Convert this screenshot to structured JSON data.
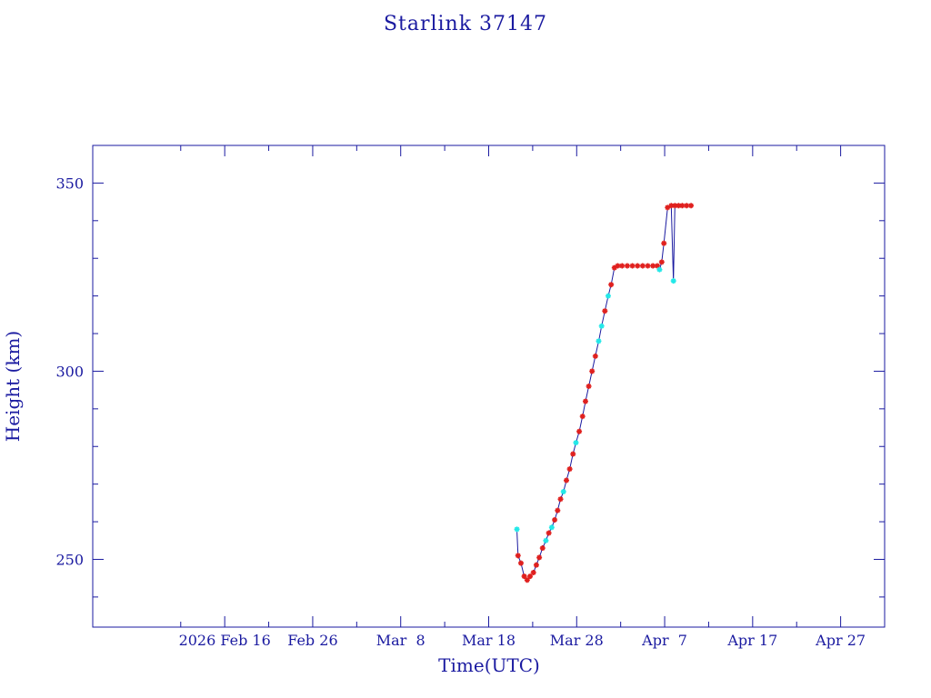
{
  "chart_data": {
    "type": "line",
    "title": "Starlink 37147",
    "xlabel": "Time(UTC)",
    "ylabel": "Height (km)",
    "x_range": [
      "2026-02-01",
      "2026-05-02"
    ],
    "ylim": [
      232,
      360
    ],
    "y_ticks": [
      250,
      300,
      350
    ],
    "x_ticks": [
      {
        "date": "2026-02-16",
        "label": "2026 Feb 16"
      },
      {
        "date": "2026-02-26",
        "label": "Feb 26"
      },
      {
        "date": "2026-03-08",
        "label": "Mar  8"
      },
      {
        "date": "2026-03-18",
        "label": "Mar 18"
      },
      {
        "date": "2026-03-28",
        "label": "Mar 28"
      },
      {
        "date": "2026-04-07",
        "label": "Apr  7"
      },
      {
        "date": "2026-04-17",
        "label": "Apr 17"
      },
      {
        "date": "2026-04-27",
        "label": "Apr 27"
      }
    ],
    "grid": false,
    "line_color": "#1a1aa0",
    "marker_colors": {
      "red": "#e0201e",
      "cyan": "#22e8e8"
    },
    "points": [
      {
        "x": "2026-03-21T05:00",
        "y": 258,
        "c": "cyan"
      },
      {
        "x": "2026-03-21T08:00",
        "y": 251,
        "c": "red"
      },
      {
        "x": "2026-03-21T16:00",
        "y": 249,
        "c": "red"
      },
      {
        "x": "2026-03-22T01:00",
        "y": 245.5,
        "c": "red"
      },
      {
        "x": "2026-03-22T09:00",
        "y": 244.5,
        "c": "red"
      },
      {
        "x": "2026-03-22T17:00",
        "y": 245.5,
        "c": "red"
      },
      {
        "x": "2026-03-23T02:00",
        "y": 246.5,
        "c": "red"
      },
      {
        "x": "2026-03-23T10:00",
        "y": 248.5,
        "c": "red"
      },
      {
        "x": "2026-03-23T18:00",
        "y": 250.5,
        "c": "red"
      },
      {
        "x": "2026-03-24T03:00",
        "y": 253,
        "c": "red"
      },
      {
        "x": "2026-03-24T12:00",
        "y": 255,
        "c": "cyan"
      },
      {
        "x": "2026-03-24T20:00",
        "y": 257,
        "c": "red"
      },
      {
        "x": "2026-03-25T04:00",
        "y": 258.5,
        "c": "cyan"
      },
      {
        "x": "2026-03-25T12:00",
        "y": 260.5,
        "c": "red"
      },
      {
        "x": "2026-03-25T20:00",
        "y": 263,
        "c": "red"
      },
      {
        "x": "2026-03-26T04:00",
        "y": 266,
        "c": "red"
      },
      {
        "x": "2026-03-26T12:00",
        "y": 268,
        "c": "cyan"
      },
      {
        "x": "2026-03-26T20:00",
        "y": 271,
        "c": "red"
      },
      {
        "x": "2026-03-27T05:00",
        "y": 274,
        "c": "red"
      },
      {
        "x": "2026-03-27T14:00",
        "y": 278,
        "c": "red"
      },
      {
        "x": "2026-03-27T22:00",
        "y": 281,
        "c": "cyan"
      },
      {
        "x": "2026-03-28T07:00",
        "y": 284,
        "c": "red"
      },
      {
        "x": "2026-03-28T16:00",
        "y": 288,
        "c": "red"
      },
      {
        "x": "2026-03-29T00:00",
        "y": 292,
        "c": "red"
      },
      {
        "x": "2026-03-29T09:00",
        "y": 296,
        "c": "red"
      },
      {
        "x": "2026-03-29T18:00",
        "y": 300,
        "c": "red"
      },
      {
        "x": "2026-03-30T03:00",
        "y": 304,
        "c": "red"
      },
      {
        "x": "2026-03-30T12:00",
        "y": 308,
        "c": "cyan"
      },
      {
        "x": "2026-03-30T20:00",
        "y": 312,
        "c": "cyan"
      },
      {
        "x": "2026-03-31T05:00",
        "y": 316,
        "c": "red"
      },
      {
        "x": "2026-03-31T14:00",
        "y": 320,
        "c": "cyan"
      },
      {
        "x": "2026-03-31T22:00",
        "y": 323,
        "c": "red"
      },
      {
        "x": "2026-04-01T07:00",
        "y": 327.5,
        "c": "red"
      },
      {
        "x": "2026-04-01T16:00",
        "y": 328,
        "c": "red"
      },
      {
        "x": "2026-04-02T04:00",
        "y": 328,
        "c": "red"
      },
      {
        "x": "2026-04-02T18:00",
        "y": 328,
        "c": "red"
      },
      {
        "x": "2026-04-03T08:00",
        "y": 328,
        "c": "red"
      },
      {
        "x": "2026-04-03T22:00",
        "y": 328,
        "c": "red"
      },
      {
        "x": "2026-04-04T12:00",
        "y": 328,
        "c": "red"
      },
      {
        "x": "2026-04-05T02:00",
        "y": 328,
        "c": "red"
      },
      {
        "x": "2026-04-05T16:00",
        "y": 328,
        "c": "red"
      },
      {
        "x": "2026-04-06T04:00",
        "y": 328,
        "c": "red"
      },
      {
        "x": "2026-04-06T10:00",
        "y": 327,
        "c": "cyan"
      },
      {
        "x": "2026-04-06T16:00",
        "y": 329,
        "c": "red"
      },
      {
        "x": "2026-04-06T22:00",
        "y": 334,
        "c": "red"
      },
      {
        "x": "2026-04-07T08:00",
        "y": 343.5,
        "c": "red"
      },
      {
        "x": "2026-04-07T18:00",
        "y": 344,
        "c": "red"
      },
      {
        "x": "2026-04-08T00:00",
        "y": 324,
        "c": "cyan"
      },
      {
        "x": "2026-04-08T04:00",
        "y": 344,
        "c": "red"
      },
      {
        "x": "2026-04-08T14:00",
        "y": 344,
        "c": "red"
      },
      {
        "x": "2026-04-09T00:00",
        "y": 344,
        "c": "red"
      },
      {
        "x": "2026-04-09T12:00",
        "y": 344,
        "c": "red"
      },
      {
        "x": "2026-04-10T00:00",
        "y": 344,
        "c": "red"
      }
    ]
  }
}
